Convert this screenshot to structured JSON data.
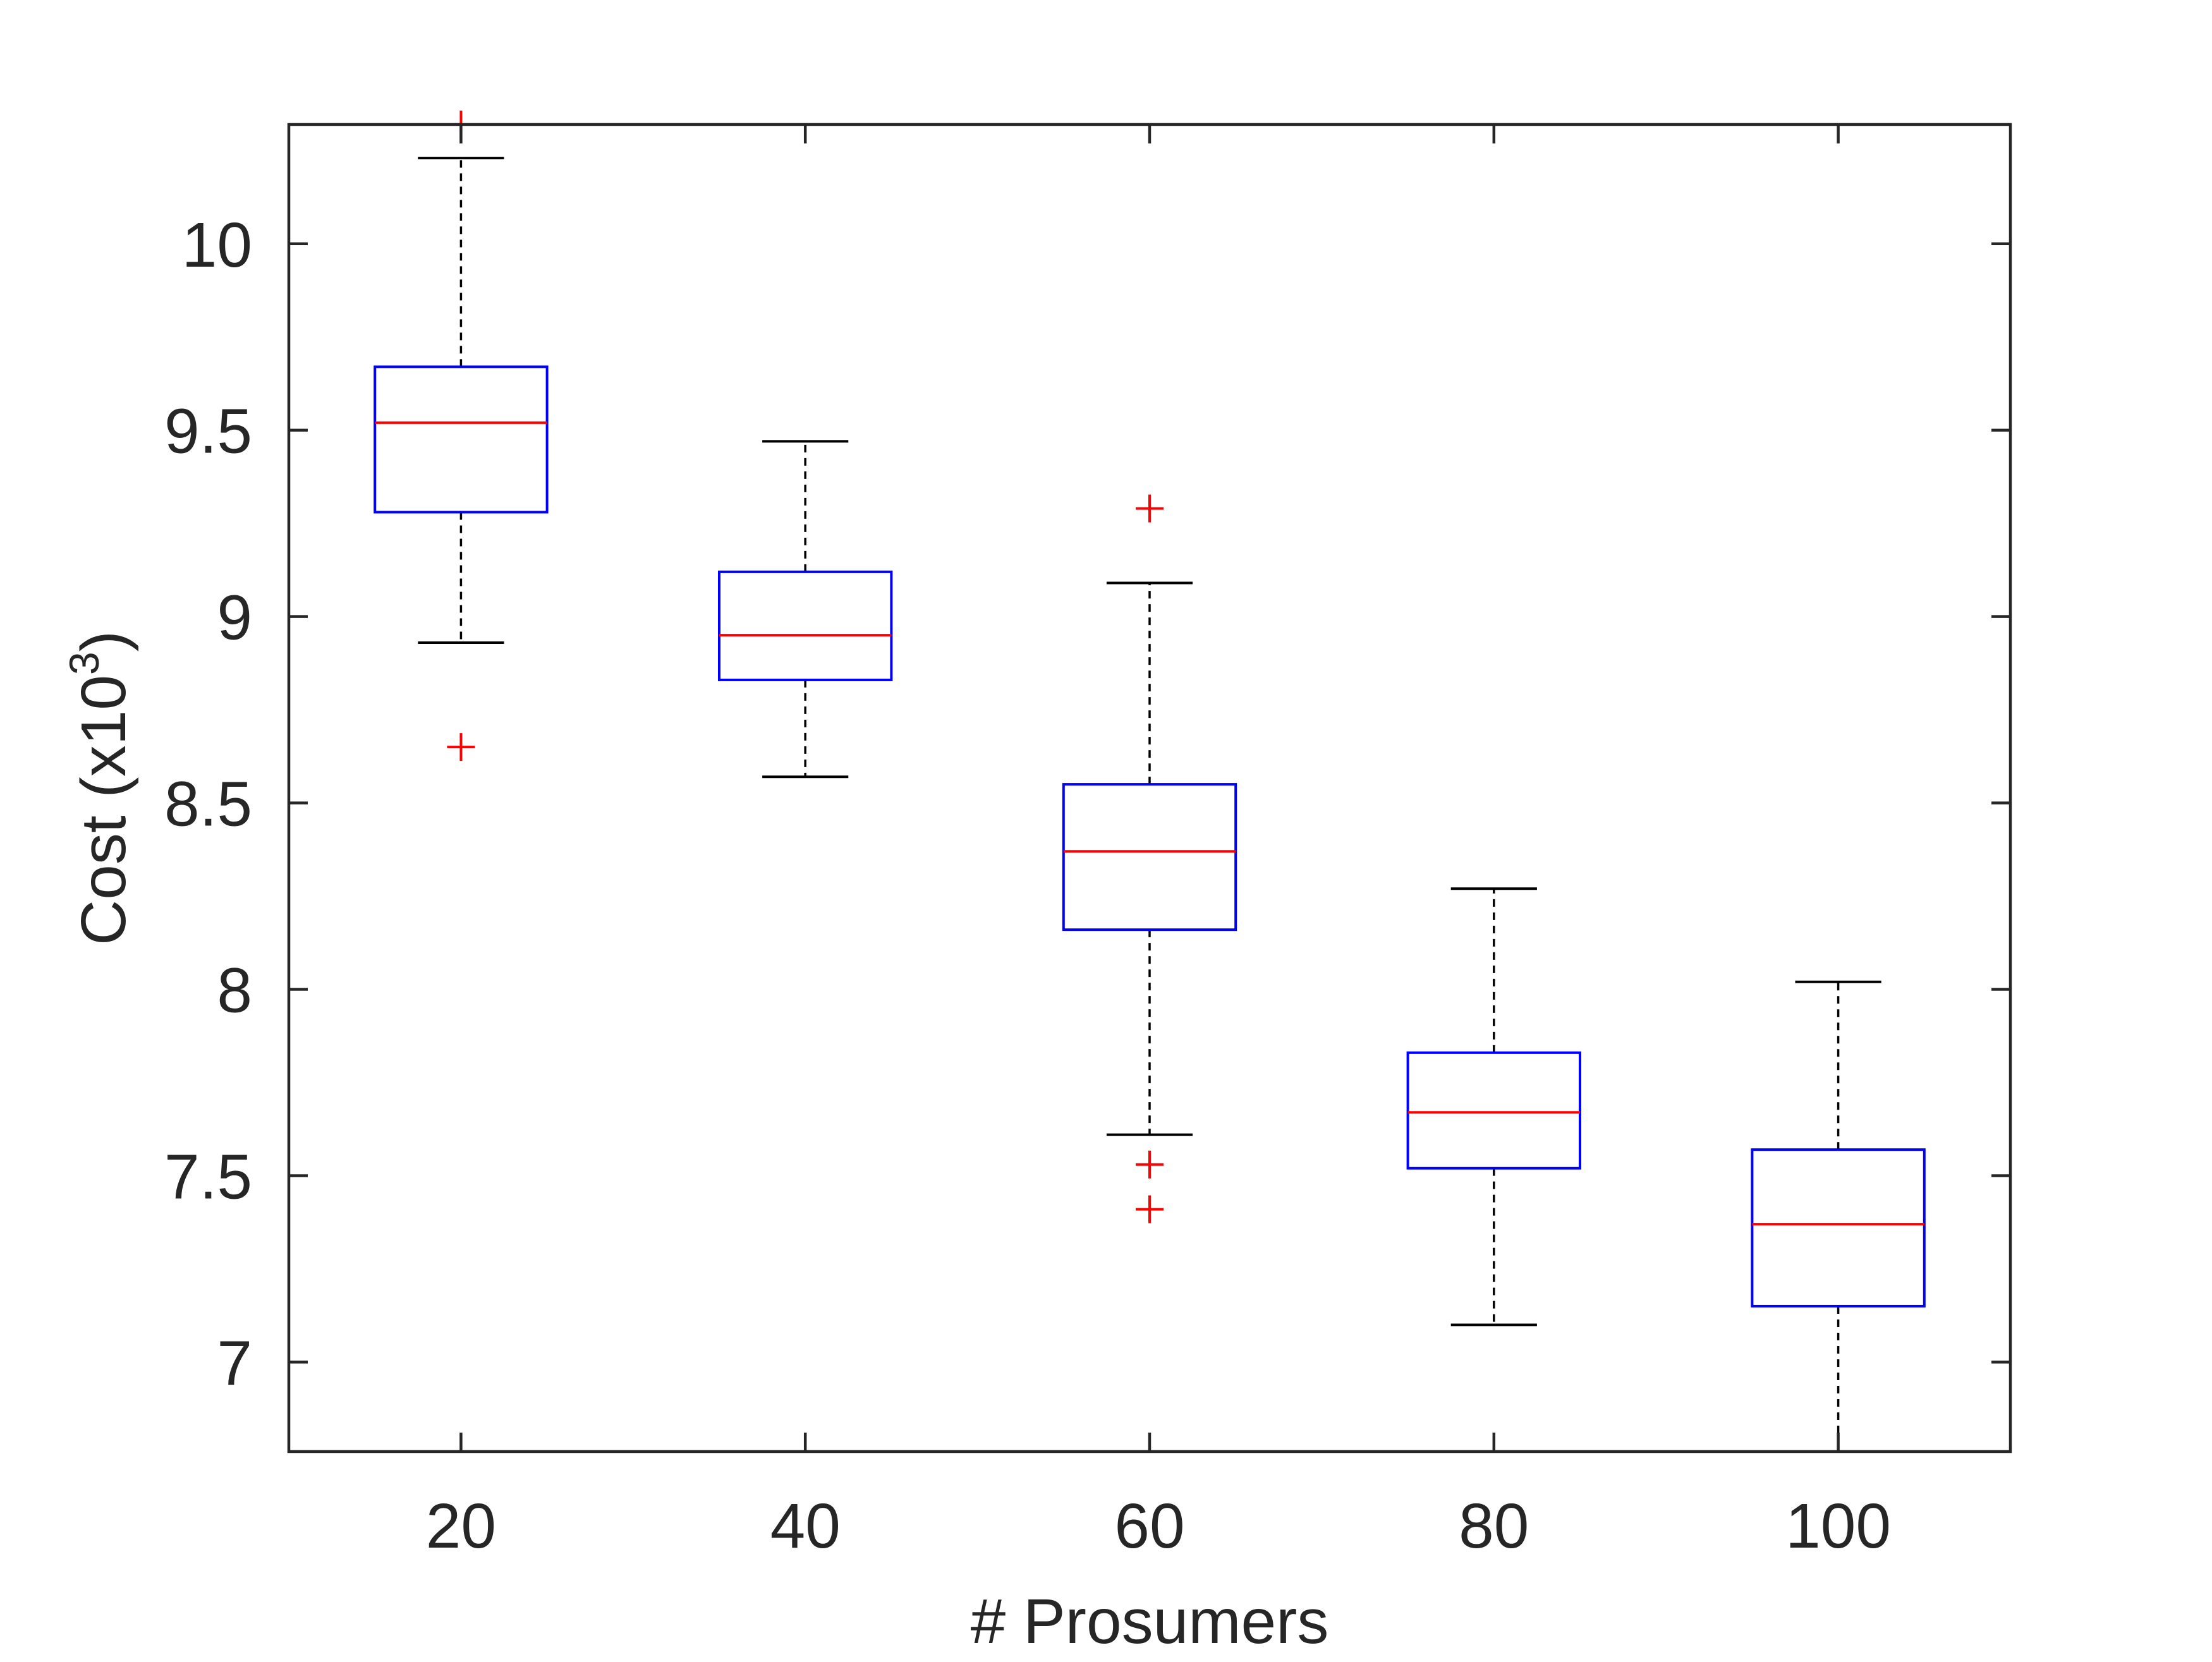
{
  "chart_data": {
    "type": "boxplot",
    "title": "",
    "xlabel": "# Prosumers",
    "ylabel_base": "Cost (x10",
    "ylabel_exponent": "3",
    "ylabel_close": ")",
    "xlim": [
      10,
      110
    ],
    "ylim": [
      6.76,
      10.32
    ],
    "xticks": [
      20,
      40,
      60,
      80,
      100
    ],
    "xtick_labels": [
      "20",
      "40",
      "60",
      "80",
      "100"
    ],
    "yticks": [
      7,
      7.5,
      8,
      8.5,
      9,
      9.5,
      10
    ],
    "ytick_labels": [
      "7",
      "7.5",
      "8",
      "8.5",
      "9",
      "9.5",
      "10"
    ],
    "box_half_width": 5,
    "cap_half_width": 2.5,
    "colors": {
      "box": "#0000ff",
      "median": "#ff0000",
      "whisker": "#000000",
      "outlier": "#ff0000",
      "axis": "#262626",
      "background": "#ffffff"
    },
    "series": [
      {
        "x": 20,
        "whisker_low": 8.93,
        "q1": 9.28,
        "median": 9.52,
        "q3": 9.67,
        "whisker_high": 10.23,
        "outliers": [
          10.32,
          8.65
        ]
      },
      {
        "x": 40,
        "whisker_low": 8.57,
        "q1": 8.83,
        "median": 8.95,
        "q3": 9.12,
        "whisker_high": 9.47,
        "outliers": []
      },
      {
        "x": 60,
        "whisker_low": 7.61,
        "q1": 8.16,
        "median": 8.37,
        "q3": 8.55,
        "whisker_high": 9.09,
        "outliers": [
          9.29,
          7.53,
          7.41
        ]
      },
      {
        "x": 80,
        "whisker_low": 7.1,
        "q1": 7.52,
        "median": 7.67,
        "q3": 7.83,
        "whisker_high": 8.27,
        "outliers": []
      },
      {
        "x": 100,
        "whisker_low": 6.76,
        "q1": 7.15,
        "median": 7.37,
        "q3": 7.57,
        "whisker_high": 8.02,
        "outliers": []
      }
    ]
  }
}
